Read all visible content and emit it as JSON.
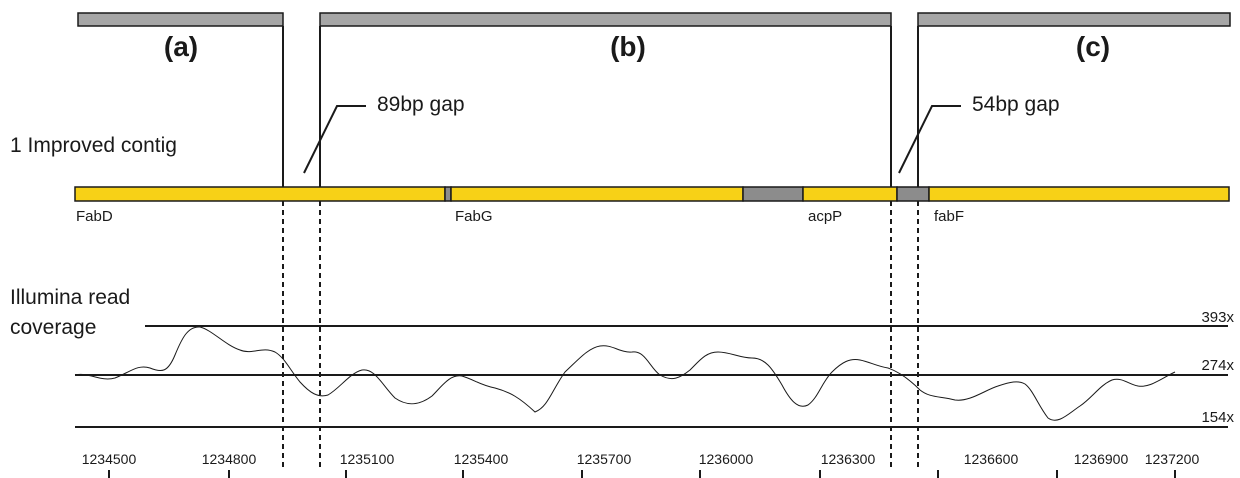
{
  "sections": [
    {
      "label": "(a)"
    },
    {
      "label": "(b)"
    },
    {
      "label": "(c)"
    }
  ],
  "contig_label": "1 Improved contig",
  "gaps": [
    {
      "label": "89bp gap"
    },
    {
      "label": "54bp gap"
    }
  ],
  "genes": [
    {
      "label": "FabD"
    },
    {
      "label": "FabG"
    },
    {
      "label": "acpP"
    },
    {
      "label": "fabF"
    }
  ],
  "coverage": {
    "title_line1": "Illumina read",
    "title_line2": "coverage",
    "levels": [
      {
        "label": "393x",
        "value": 393
      },
      {
        "label": "274x",
        "value": 274
      },
      {
        "label": "154x",
        "value": 154
      }
    ]
  },
  "axis": {
    "ticks": [
      {
        "label": "1234500",
        "value": 1234500
      },
      {
        "label": "1234800",
        "value": 1234800
      },
      {
        "label": "1235100",
        "value": 1235100
      },
      {
        "label": "1235400",
        "value": 1235400
      },
      {
        "label": "1235700",
        "value": 1235700
      },
      {
        "label": "1236000",
        "value": 1236000
      },
      {
        "label": "1236300",
        "value": 1236300
      },
      {
        "label": "1236600",
        "value": 1236600
      },
      {
        "label": "1236900",
        "value": 1236900
      },
      {
        "label": "1237200",
        "value": 1237200
      }
    ]
  },
  "colors": {
    "contig": "#f7d117",
    "gap": "#8c8c8c",
    "header": "#a6a6a6",
    "line": "#1a1a1a"
  }
}
